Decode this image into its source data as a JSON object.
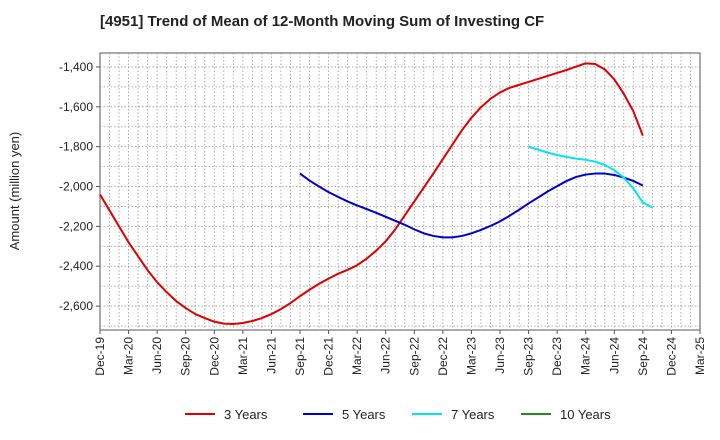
{
  "chart_data": {
    "type": "line",
    "title": "[4951]  Trend of Mean of 12-Month Moving Sum of Investing CF",
    "xlabel": "",
    "ylabel": "Amount (million yen)",
    "ylim": [
      -2720,
      -1330
    ],
    "yticks": [
      -1400,
      -1600,
      -1800,
      -2000,
      -2200,
      -2400,
      -2600
    ],
    "ytick_labels": [
      "-1,400",
      "-1,600",
      "-1,800",
      "-2,000",
      "-2,200",
      "-2,400",
      "-2,600"
    ],
    "xlim": [
      "2019-12",
      "2025-03"
    ],
    "x_tick_labels": [
      "Dec-19",
      "Mar-20",
      "Jun-20",
      "Sep-20",
      "Dec-20",
      "Mar-21",
      "Jun-21",
      "Sep-21",
      "Dec-21",
      "Mar-22",
      "Jun-22",
      "Sep-22",
      "Dec-22",
      "Mar-23",
      "Jun-23",
      "Sep-23",
      "Dec-23",
      "Mar-24",
      "Jun-24",
      "Sep-24",
      "Dec-24",
      "Mar-25"
    ],
    "grid": true,
    "legend_position": "bottom",
    "series": [
      {
        "name": "3 Years",
        "color": "#dd0000",
        "points": [
          [
            "2019-12",
            -2040
          ],
          [
            "2020-01",
            -2120
          ],
          [
            "2020-02",
            -2200
          ],
          [
            "2020-03",
            -2280
          ],
          [
            "2020-04",
            -2350
          ],
          [
            "2020-05",
            -2420
          ],
          [
            "2020-06",
            -2480
          ],
          [
            "2020-07",
            -2530
          ],
          [
            "2020-08",
            -2575
          ],
          [
            "2020-09",
            -2610
          ],
          [
            "2020-10",
            -2640
          ],
          [
            "2020-11",
            -2660
          ],
          [
            "2020-12",
            -2678
          ],
          [
            "2021-01",
            -2688
          ],
          [
            "2021-02",
            -2690
          ],
          [
            "2021-03",
            -2685
          ],
          [
            "2021-04",
            -2675
          ],
          [
            "2021-05",
            -2660
          ],
          [
            "2021-06",
            -2640
          ],
          [
            "2021-07",
            -2615
          ],
          [
            "2021-08",
            -2585
          ],
          [
            "2021-09",
            -2550
          ],
          [
            "2021-10",
            -2518
          ],
          [
            "2021-11",
            -2488
          ],
          [
            "2021-12",
            -2462
          ],
          [
            "2022-01",
            -2438
          ],
          [
            "2022-02",
            -2418
          ],
          [
            "2022-03",
            -2395
          ],
          [
            "2022-04",
            -2362
          ],
          [
            "2022-05",
            -2322
          ],
          [
            "2022-06",
            -2275
          ],
          [
            "2022-07",
            -2215
          ],
          [
            "2022-08",
            -2145
          ],
          [
            "2022-09",
            -2075
          ],
          [
            "2022-10",
            -2005
          ],
          [
            "2022-11",
            -1935
          ],
          [
            "2022-12",
            -1862
          ],
          [
            "2023-01",
            -1790
          ],
          [
            "2023-02",
            -1718
          ],
          [
            "2023-03",
            -1655
          ],
          [
            "2023-04",
            -1602
          ],
          [
            "2023-05",
            -1560
          ],
          [
            "2023-06",
            -1528
          ],
          [
            "2023-07",
            -1505
          ],
          [
            "2023-08",
            -1490
          ],
          [
            "2023-09",
            -1475
          ],
          [
            "2023-10",
            -1460
          ],
          [
            "2023-11",
            -1445
          ],
          [
            "2023-12",
            -1430
          ],
          [
            "2024-01",
            -1415
          ],
          [
            "2024-02",
            -1398
          ],
          [
            "2024-03",
            -1382
          ],
          [
            "2024-04",
            -1385
          ],
          [
            "2024-05",
            -1412
          ],
          [
            "2024-06",
            -1462
          ],
          [
            "2024-07",
            -1535
          ],
          [
            "2024-08",
            -1622
          ],
          [
            "2024-09",
            -1745
          ]
        ]
      },
      {
        "name": "5 Years",
        "color": "#0000cc",
        "points": [
          [
            "2021-09",
            -1935
          ],
          [
            "2021-10",
            -1970
          ],
          [
            "2021-11",
            -2000
          ],
          [
            "2021-12",
            -2028
          ],
          [
            "2022-01",
            -2052
          ],
          [
            "2022-02",
            -2075
          ],
          [
            "2022-03",
            -2095
          ],
          [
            "2022-04",
            -2113
          ],
          [
            "2022-05",
            -2132
          ],
          [
            "2022-06",
            -2152
          ],
          [
            "2022-07",
            -2172
          ],
          [
            "2022-08",
            -2192
          ],
          [
            "2022-09",
            -2215
          ],
          [
            "2022-10",
            -2235
          ],
          [
            "2022-11",
            -2248
          ],
          [
            "2022-12",
            -2255
          ],
          [
            "2023-01",
            -2255
          ],
          [
            "2023-02",
            -2248
          ],
          [
            "2023-03",
            -2235
          ],
          [
            "2023-04",
            -2218
          ],
          [
            "2023-05",
            -2198
          ],
          [
            "2023-06",
            -2175
          ],
          [
            "2023-07",
            -2147
          ],
          [
            "2023-08",
            -2117
          ],
          [
            "2023-09",
            -2085
          ],
          [
            "2023-10",
            -2055
          ],
          [
            "2023-11",
            -2025
          ],
          [
            "2023-12",
            -1998
          ],
          [
            "2024-01",
            -1972
          ],
          [
            "2024-02",
            -1952
          ],
          [
            "2024-03",
            -1940
          ],
          [
            "2024-04",
            -1935
          ],
          [
            "2024-05",
            -1935
          ],
          [
            "2024-06",
            -1942
          ],
          [
            "2024-07",
            -1955
          ],
          [
            "2024-08",
            -1972
          ],
          [
            "2024-09",
            -1995
          ]
        ]
      },
      {
        "name": "7 Years",
        "color": "#00e5ee",
        "points": [
          [
            "2023-09",
            -1800
          ],
          [
            "2023-10",
            -1815
          ],
          [
            "2023-11",
            -1830
          ],
          [
            "2023-12",
            -1842
          ],
          [
            "2024-01",
            -1852
          ],
          [
            "2024-02",
            -1860
          ],
          [
            "2024-03",
            -1866
          ],
          [
            "2024-04",
            -1875
          ],
          [
            "2024-05",
            -1892
          ],
          [
            "2024-06",
            -1918
          ],
          [
            "2024-07",
            -1955
          ],
          [
            "2024-08",
            -2010
          ],
          [
            "2024-09",
            -2080
          ],
          [
            "2024-10",
            -2105
          ]
        ]
      },
      {
        "name": "10 Years",
        "color": "#228b22",
        "points": []
      }
    ]
  }
}
